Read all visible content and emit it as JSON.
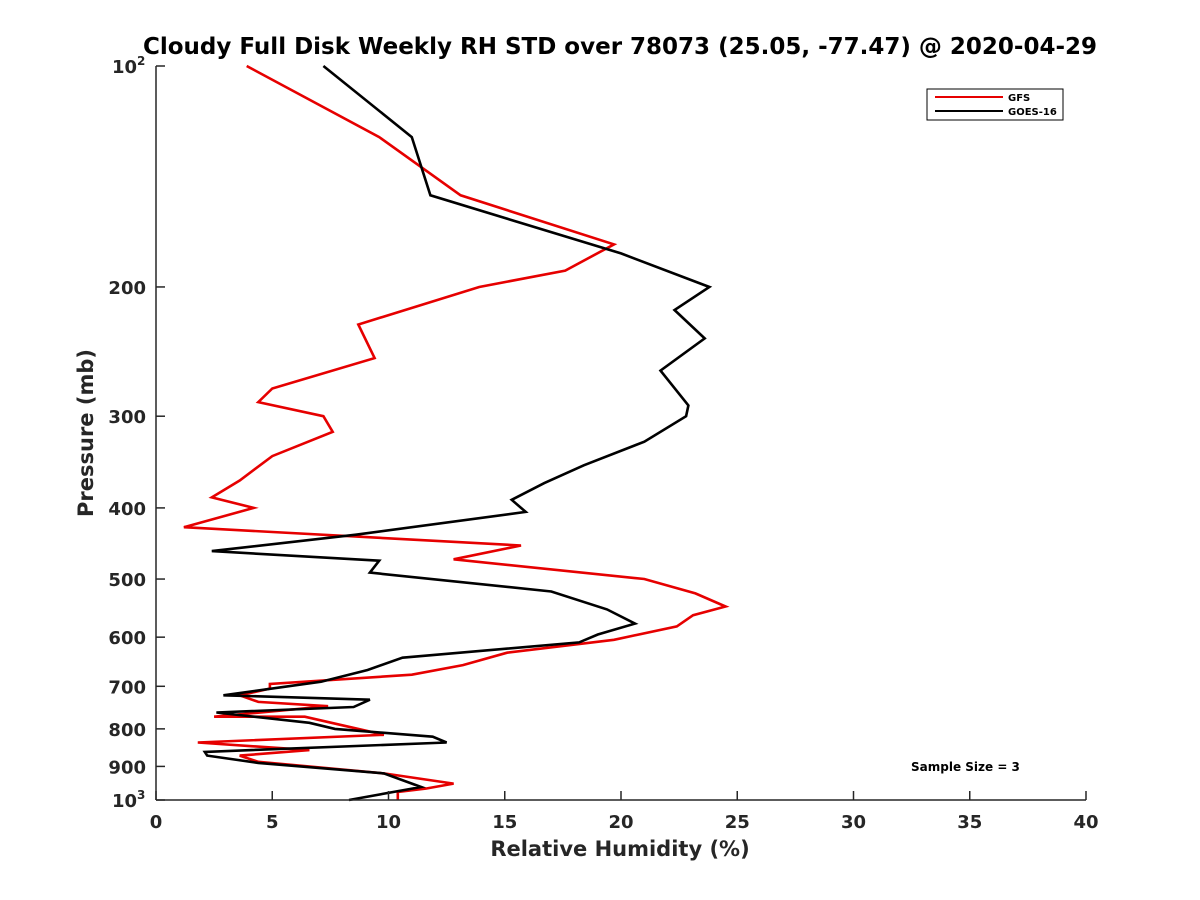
{
  "chart_data": {
    "type": "line",
    "title": "Cloudy Full Disk Weekly RH STD over 78073 (25.05, -77.47) @ 2020-04-29",
    "xlabel": "Relative Humidity (%)",
    "ylabel": "Pressure (mb)",
    "xlim": [
      0,
      40
    ],
    "ylim": [
      100,
      1000
    ],
    "y_scale": "log",
    "y_reversed": true,
    "grid": false,
    "legend_position": "top-right",
    "x_ticks": [
      "0",
      "5",
      "10",
      "15",
      "20",
      "25",
      "30",
      "35",
      "40"
    ],
    "y_ticks": [
      {
        "value": 100,
        "base": "10",
        "exp": "2"
      },
      {
        "value": 200,
        "label": "200"
      },
      {
        "value": 300,
        "label": "300"
      },
      {
        "value": 400,
        "label": "400"
      },
      {
        "value": 500,
        "label": "500"
      },
      {
        "value": 600,
        "label": "600"
      },
      {
        "value": 700,
        "label": "700"
      },
      {
        "value": 800,
        "label": "800"
      },
      {
        "value": 900,
        "label": "900"
      },
      {
        "value": 1000,
        "base": "10",
        "exp": "3"
      }
    ],
    "annotation": "Sample Size = 3",
    "series": [
      {
        "name": "GFS",
        "color": "#e60000",
        "points": [
          [
            3.9,
            100
          ],
          [
            9.6,
            125
          ],
          [
            13.1,
            150
          ],
          [
            19.7,
            175
          ],
          [
            17.6,
            190
          ],
          [
            13.9,
            200
          ],
          [
            8.7,
            225
          ],
          [
            9.4,
            250
          ],
          [
            5.0,
            275
          ],
          [
            4.4,
            287
          ],
          [
            7.2,
            300
          ],
          [
            7.6,
            315
          ],
          [
            5.0,
            340
          ],
          [
            3.6,
            367
          ],
          [
            2.4,
            387
          ],
          [
            4.2,
            400
          ],
          [
            1.2,
            425
          ],
          [
            15.7,
            450
          ],
          [
            12.8,
            470
          ],
          [
            21.0,
            500
          ],
          [
            23.2,
            523
          ],
          [
            24.5,
            545
          ],
          [
            23.1,
            560
          ],
          [
            22.4,
            580
          ],
          [
            19.7,
            605
          ],
          [
            15.1,
            630
          ],
          [
            13.2,
            655
          ],
          [
            11.0,
            675
          ],
          [
            4.9,
            695
          ],
          [
            4.9,
            705
          ],
          [
            3.6,
            720
          ],
          [
            4.4,
            735
          ],
          [
            7.4,
            745
          ],
          [
            2.5,
            770
          ],
          [
            6.4,
            770
          ],
          [
            9.8,
            815
          ],
          [
            1.8,
            835
          ],
          [
            6.6,
            855
          ],
          [
            3.6,
            870
          ],
          [
            4.4,
            887
          ],
          [
            9.8,
            920
          ],
          [
            12.8,
            950
          ],
          [
            11.6,
            965
          ],
          [
            10.4,
            975
          ],
          [
            10.4,
            1000
          ]
        ]
      },
      {
        "name": "GOES-16",
        "color": "#000000",
        "points": [
          [
            7.2,
            100
          ],
          [
            11.0,
            125
          ],
          [
            11.8,
            150
          ],
          [
            20.0,
            180
          ],
          [
            23.8,
            200
          ],
          [
            22.3,
            215
          ],
          [
            23.6,
            235
          ],
          [
            21.7,
            260
          ],
          [
            22.9,
            290
          ],
          [
            22.8,
            300
          ],
          [
            21.0,
            325
          ],
          [
            18.4,
            350
          ],
          [
            16.7,
            370
          ],
          [
            15.3,
            390
          ],
          [
            15.9,
            405
          ],
          [
            8.6,
            435
          ],
          [
            2.4,
            458
          ],
          [
            9.6,
            472
          ],
          [
            9.2,
            490
          ],
          [
            17.0,
            520
          ],
          [
            19.4,
            550
          ],
          [
            20.6,
            575
          ],
          [
            19.0,
            595
          ],
          [
            18.2,
            610
          ],
          [
            10.6,
            640
          ],
          [
            9.1,
            665
          ],
          [
            7.1,
            690
          ],
          [
            2.9,
            720
          ],
          [
            9.2,
            730
          ],
          [
            8.5,
            747
          ],
          [
            2.6,
            760
          ],
          [
            6.6,
            785
          ],
          [
            7.7,
            800
          ],
          [
            11.9,
            820
          ],
          [
            12.5,
            835
          ],
          [
            2.1,
            860
          ],
          [
            2.2,
            870
          ],
          [
            4.4,
            890
          ],
          [
            9.8,
            920
          ],
          [
            11.4,
            960
          ],
          [
            8.3,
            1000
          ]
        ]
      }
    ]
  }
}
